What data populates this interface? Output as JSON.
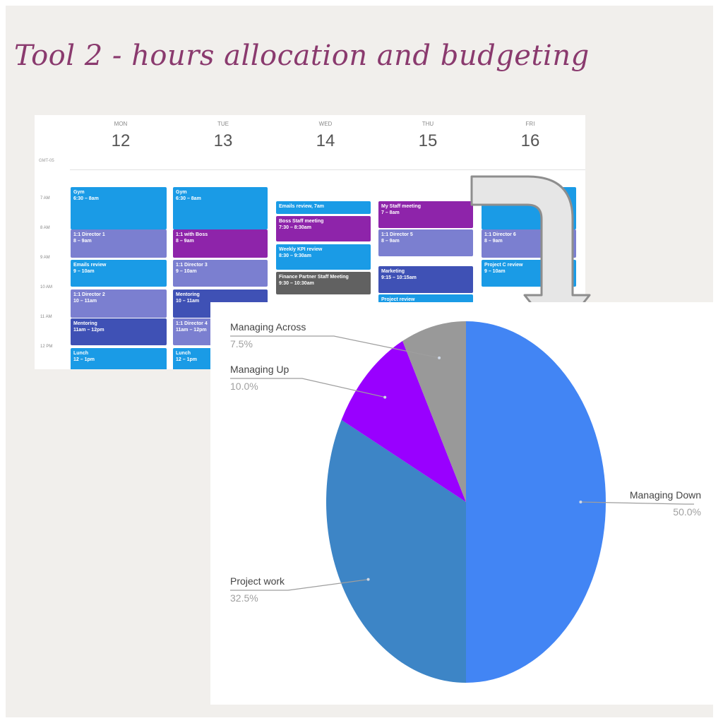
{
  "slide": {
    "title": "Tool 2 - hours allocation and budgeting"
  },
  "calendar": {
    "timezone": "GMT-05",
    "days": [
      {
        "dow": "MON",
        "date": "12"
      },
      {
        "dow": "TUE",
        "date": "13"
      },
      {
        "dow": "WED",
        "date": "14"
      },
      {
        "dow": "THU",
        "date": "15"
      },
      {
        "dow": "FRI",
        "date": "16"
      }
    ],
    "hours": [
      "7 AM",
      "8 AM",
      "9 AM",
      "10 AM",
      "11 AM",
      "12 PM"
    ],
    "events": [
      {
        "day": 0,
        "title": "Gym",
        "time": "6:30 – 8am",
        "color": "#1a9be6"
      },
      {
        "day": 0,
        "title": "1:1 Director 1",
        "time": "8 – 9am",
        "color": "#7b7fd0"
      },
      {
        "day": 0,
        "title": "Emails review",
        "time": "9 – 10am",
        "color": "#1a9be6"
      },
      {
        "day": 0,
        "title": "1:1 Director 2",
        "time": "10 – 11am",
        "color": "#7b7fd0"
      },
      {
        "day": 0,
        "title": "Mentoring",
        "time": "11am – 12pm",
        "color": "#3f51b5"
      },
      {
        "day": 0,
        "title": "Lunch",
        "time": "12 – 1pm",
        "color": "#1a9be6"
      },
      {
        "day": 1,
        "title": "Gym",
        "time": "6:30 – 8am",
        "color": "#1a9be6"
      },
      {
        "day": 1,
        "title": "1:1 with Boss",
        "time": "8 – 9am",
        "color": "#8e24aa"
      },
      {
        "day": 1,
        "title": "1:1 Director 3",
        "time": "9 – 10am",
        "color": "#7b7fd0"
      },
      {
        "day": 1,
        "title": "Mentoring",
        "time": "10 – 11am",
        "color": "#3f51b5"
      },
      {
        "day": 1,
        "title": "1:1 Director 4",
        "time": "11am – 12pm",
        "color": "#7b7fd0"
      },
      {
        "day": 1,
        "title": "Lunch",
        "time": "12 – 1pm",
        "color": "#1a9be6"
      },
      {
        "day": 2,
        "title": "Emails review, 7am",
        "time": "",
        "color": "#1a9be6"
      },
      {
        "day": 2,
        "title": "Boss Staff meeting",
        "time": "7:30 – 8:30am",
        "color": "#8e24aa"
      },
      {
        "day": 2,
        "title": "Weekly KPI review",
        "time": "8:30 – 9:30am",
        "color": "#1a9be6"
      },
      {
        "day": 2,
        "title": "Finance Partner Staff Meeting",
        "time": "9:30 – 10:30am",
        "color": "#616161"
      },
      {
        "day": 3,
        "title": "My Staff meeting",
        "time": "7 – 8am",
        "color": "#8e24aa"
      },
      {
        "day": 3,
        "title": "1:1 Director 5",
        "time": "8 – 9am",
        "color": "#7b7fd0"
      },
      {
        "day": 3,
        "title": "Marketing",
        "time": "9:15 – 10:15am",
        "color": "#3f51b5"
      },
      {
        "day": 3,
        "title": "Project review",
        "time": "",
        "color": "#1a9be6"
      },
      {
        "day": 4,
        "title": "",
        "time": "",
        "color": "#1a9be6"
      },
      {
        "day": 4,
        "title": "1:1 Director 6",
        "time": "8 – 9am",
        "color": "#7b7fd0"
      },
      {
        "day": 4,
        "title": "Project C review",
        "time": "9 – 10am",
        "color": "#1a9be6"
      }
    ]
  },
  "chart_data": {
    "type": "pie",
    "title": "",
    "slices": [
      {
        "label": "Managing Down",
        "value": 50.0,
        "pct_label": "50.0%",
        "color": "#4285f4"
      },
      {
        "label": "Project work",
        "value": 32.5,
        "pct_label": "32.5%",
        "color": "#3d85c6"
      },
      {
        "label": "Managing Up",
        "value": 10.0,
        "pct_label": "10.0%",
        "color": "#9900ff"
      },
      {
        "label": "Managing Across",
        "value": 7.5,
        "pct_label": "7.5%",
        "color": "#999999"
      }
    ],
    "start": "12 o'clock",
    "direction": "clockwise",
    "labels": "outside with leader lines",
    "legend": "none"
  },
  "colors": {
    "title": "#8a3a6e",
    "background": "#f1efec",
    "arrow_fill": "#e6e6e6",
    "arrow_stroke": "#8e8e8e"
  },
  "icons": [
    "curved-down-arrow-icon"
  ]
}
